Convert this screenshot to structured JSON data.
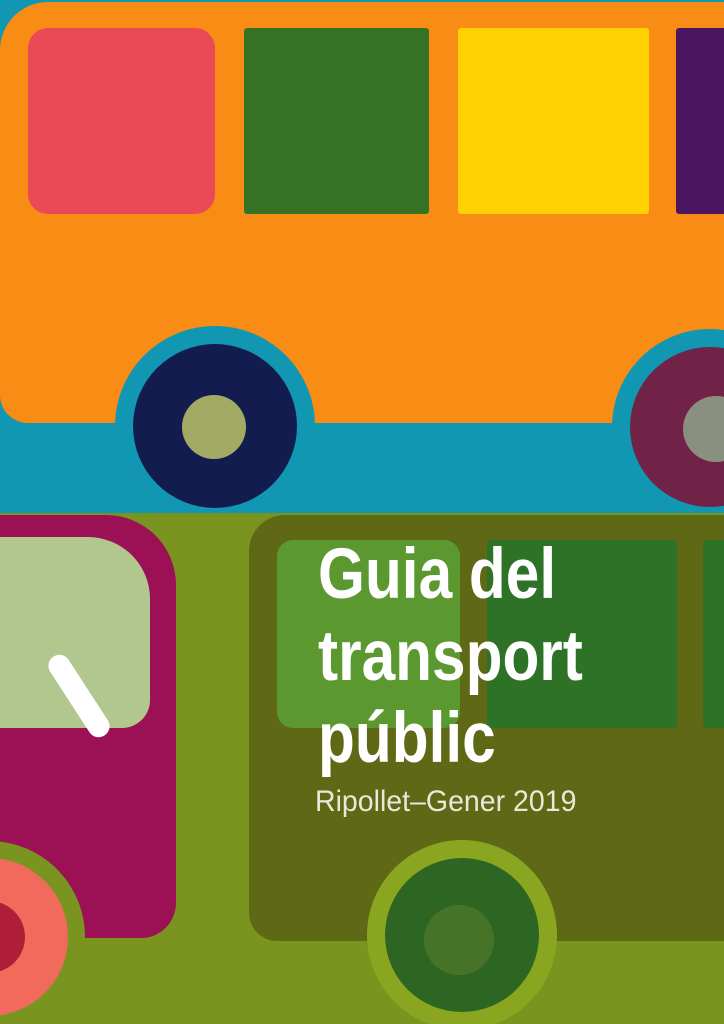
{
  "poster": {
    "title": {
      "line1": "Guia del",
      "line2": "transport",
      "line3": "públic"
    },
    "subtitle": "Ripollet–Gener 2019"
  },
  "scene": {
    "top": "orange bus side with four windows rolling on a teal street band",
    "bottom": "olive ground with dark green bus carrying the title text and a magenta van front"
  },
  "colors": {
    "sky_teal": "#1297b3",
    "orange_bus": "#f88c15",
    "window_pink": "#e94a55",
    "window_green": "#357224",
    "window_yellow": "#ffd103",
    "window_purple": "#4b1560",
    "wheel_navy": "#131c4f",
    "wheel_navy_hub": "#a3aa63",
    "wheel_maroon": "#702247",
    "wheel_maroon_hub": "#8a9080",
    "ground_olive": "#79951f",
    "green_bus": "#5e6815",
    "bus2_window_light": "#5b9830",
    "bus2_window_dark": "#2d7227",
    "wheel_ring_light": "#8aa620",
    "wheel_dark_green": "#2d6522",
    "wheel_green_hub": "#477329",
    "van_magenta": "#9c1056",
    "van_window": "#b2c78d",
    "wiper_white": "#ffffff",
    "wheel_salmon": "#f26a5c",
    "wheel_salmon_hub": "#b01d39",
    "title_text": "#ffffff",
    "subtitle_text": "#e6ead9"
  }
}
